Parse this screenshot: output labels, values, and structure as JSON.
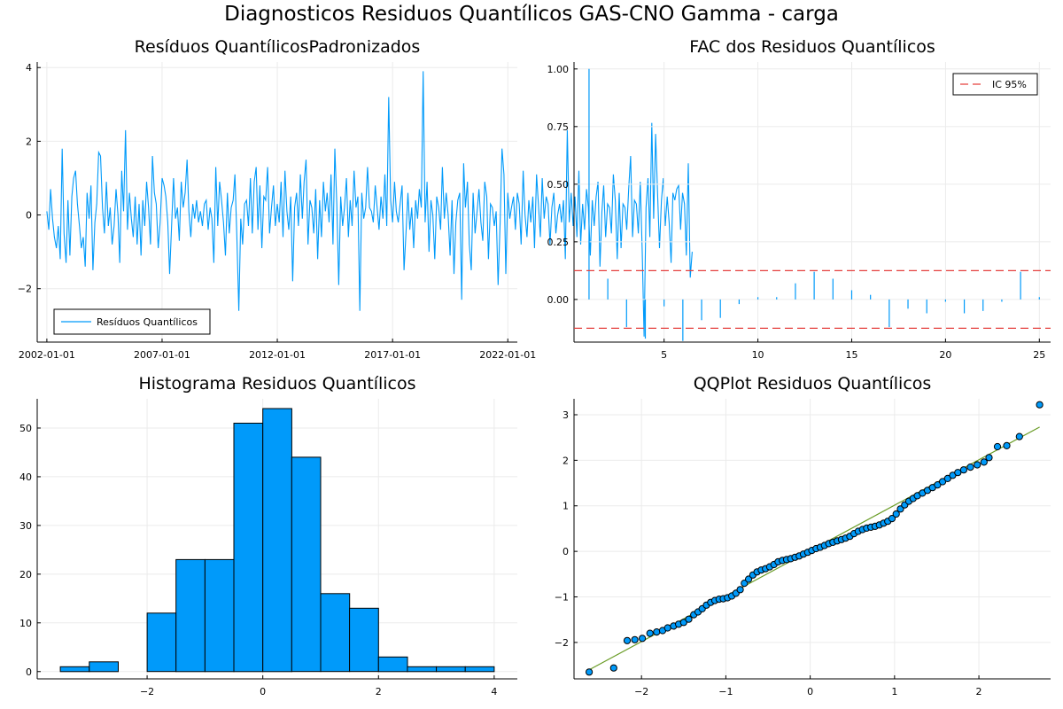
{
  "figure_title": "Diagnosticos Residuos  Quantílicos GAS-CNO Gamma - carga",
  "colors": {
    "series": "#009AFA",
    "ic": "#E5403E",
    "fit": "#6A9C26",
    "grid": "#EBEBEB",
    "axis": "#000000"
  },
  "chart_data": [
    {
      "type": "line",
      "title": "Resíduos  QuantílicosPadronizados",
      "legend": {
        "entries": [
          "Resíduos Quantílicos"
        ],
        "position": "bottom-left"
      },
      "x_ticks": [
        "2002-01-01",
        "2007-01-01",
        "2012-01-01",
        "2017-01-01",
        "2022-01-01"
      ],
      "x_range": [
        "2001-08-01",
        "2022-06-01"
      ],
      "y_ticks": [
        -2,
        0,
        2,
        4
      ],
      "ylim": [
        -3.45,
        4.15
      ],
      "grid": true,
      "series": [
        {
          "name": "Resíduos Quantílicos",
          "x_start": "2002-01-01",
          "frequency": "monthly",
          "values": [
            0.1,
            -0.4,
            0.7,
            -0.1,
            -0.6,
            -0.9,
            -0.3,
            -1.2,
            1.8,
            -0.5,
            -1.3,
            0.4,
            -1.1,
            0.5,
            1.0,
            1.2,
            0.3,
            -0.3,
            -0.9,
            -0.6,
            -1.4,
            0.6,
            -0.1,
            0.8,
            -1.5,
            -0.2,
            0.3,
            1.7,
            1.6,
            0.2,
            -0.5,
            0.9,
            -0.3,
            0.2,
            -0.8,
            -0.3,
            0.7,
            0.0,
            -1.3,
            1.2,
            0.1,
            2.3,
            -0.4,
            0.6,
            -0.1,
            -0.6,
            0.5,
            -0.8,
            0.3,
            -1.1,
            0.4,
            -0.3,
            0.9,
            0.2,
            -0.8,
            1.6,
            0.6,
            0.3,
            -0.9,
            -0.2,
            1.0,
            0.8,
            0.5,
            -0.2,
            -1.6,
            -0.3,
            1.0,
            -0.1,
            0.2,
            -0.7,
            0.9,
            0.2,
            0.6,
            1.5,
            0.1,
            -0.6,
            0.3,
            -0.1,
            0.4,
            -0.2,
            0.1,
            -0.3,
            0.3,
            0.4,
            -0.4,
            0.2,
            -0.1,
            -1.3,
            1.3,
            -0.3,
            0.9,
            0.4,
            -0.2,
            -1.1,
            0.6,
            -0.5,
            0.2,
            0.4,
            1.1,
            -0.6,
            -2.6,
            -0.1,
            -0.8,
            0.3,
            0.4,
            -0.3,
            1.0,
            -0.5,
            0.9,
            1.3,
            -0.4,
            0.8,
            -0.9,
            0.5,
            0.4,
            1.3,
            -0.5,
            0.2,
            0.8,
            -0.3,
            0.3,
            -0.2,
            0.9,
            -0.6,
            1.2,
            0.1,
            -0.4,
            0.5,
            -1.8,
            0.2,
            0.6,
            -0.3,
            1.1,
            -0.1,
            0.9,
            1.5,
            -0.8,
            0.4,
            0.2,
            -0.5,
            0.7,
            -1.2,
            0.4,
            -0.6,
            0.9,
            0.1,
            0.6,
            -0.2,
            1.1,
            -0.8,
            1.8,
            0.3,
            -1.9,
            0.5,
            -0.3,
            0.2,
            1.0,
            -0.6,
            0.4,
            -0.3,
            1.2,
            0.2,
            0.5,
            -2.6,
            0.6,
            -0.1,
            0.2,
            1.3,
            0.2,
            0.1,
            -0.2,
            0.8,
            0.2,
            -0.4,
            0.5,
            -0.1,
            1.1,
            -0.3,
            3.2,
            0.4,
            -0.2,
            0.9,
            0.1,
            -0.2,
            0.3,
            0.8,
            -1.5,
            -0.5,
            0.6,
            -0.4,
            0.2,
            -0.9,
            0.4,
            -0.1,
            0.7,
            0.2,
            3.9,
            -0.2,
            0.9,
            -1.0,
            0.4,
            0.0,
            -1.2,
            0.5,
            0.2,
            -0.4,
            1.3,
            -0.1,
            0.6,
            0.0,
            -1.1,
            0.4,
            -1.6,
            -0.2,
            0.4,
            0.6,
            -2.3,
            1.4,
            0.2,
            0.9,
            -0.8,
            -1.5,
            0.6,
            -0.5,
            0.1,
            0.7,
            -0.2,
            -0.7,
            0.9,
            0.5,
            -1.2,
            0.3,
            0.2,
            -0.3,
            0.1,
            -1.9,
            -0.2,
            1.8,
            1.1,
            -1.6,
            0.6,
            -0.1,
            0.2,
            0.5,
            -0.4,
            0.6,
            0.3,
            -0.8,
            1.2,
            0.0,
            -0.6,
            0.4,
            -0.2,
            0.5,
            -0.9,
            1.1,
            0.3,
            -0.6,
            1.0,
            -0.1,
            0.5,
            0.3,
            -0.8,
            0.2,
            0.6,
            -0.5,
            0.0,
            0.3,
            -0.2,
            0.4,
            -1.2,
            2.3,
            -0.2,
            0.6,
            -0.3,
            0.5,
            -0.6,
            1.2,
            -0.8,
            0.3,
            -0.4,
            0.7,
            0.2,
            -1.1,
            0.4,
            -0.3,
            0.5,
            0.9,
            -1.4,
            0.1,
            0.8,
            -0.6,
            0.3,
            0.2,
            -0.5,
            1.1,
            0.4,
            -1.2,
            0.6,
            -0.9,
            0.3,
            0.2,
            -0.4,
            0.7,
            1.6,
            -0.6,
            0.4,
            0.3,
            -0.5,
            0.9,
            -1.0,
            -3.3,
            0.2,
            1.0,
            -0.6,
            2.5,
            -0.1,
            2.2,
            0.6,
            -0.9,
            0.4,
            1.0,
            -0.3,
            0.5,
            -0.2,
            -1.3,
            0.6,
            0.4,
            0.7,
            0.8,
            -0.4,
            0.6,
            0.3,
            -1.1,
            1.4,
            -1.7,
            -1.0
          ]
        }
      ]
    },
    {
      "type": "bar",
      "title": "FAC dos Residuos Quantílicos",
      "legend": {
        "entries": [
          "IC 95%"
        ],
        "position": "top-right"
      },
      "x_ticks": [
        5,
        10,
        15,
        20,
        25
      ],
      "xlim": [
        0.2,
        25.6
      ],
      "y_ticks": [
        "0.00",
        "0.25",
        "0.50",
        "0.75",
        "1.00"
      ],
      "ylim": [
        -0.185,
        1.03
      ],
      "grid": true,
      "lags": [
        1,
        2,
        3,
        4,
        5,
        6,
        7,
        8,
        9,
        10,
        11,
        12,
        13,
        14,
        15,
        16,
        17,
        18,
        19,
        20,
        21,
        22,
        23,
        24,
        25
      ],
      "values": [
        1.0,
        0.09,
        -0.12,
        -0.17,
        -0.03,
        -0.18,
        -0.09,
        -0.08,
        -0.02,
        0.01,
        0.01,
        0.07,
        0.12,
        0.09,
        0.04,
        0.02,
        -0.12,
        -0.04,
        -0.06,
        -0.01,
        -0.06,
        -0.05,
        -0.01,
        0.12,
        0.01
      ],
      "ic_upper": 0.125,
      "ic_lower": -0.125
    },
    {
      "type": "histogram",
      "title": "Histograma Residuos Quantílicos",
      "x_ticks": [
        -2,
        0,
        2,
        4
      ],
      "xlim": [
        -3.9,
        4.4
      ],
      "y_ticks": [
        0,
        10,
        20,
        30,
        40,
        50
      ],
      "ylim": [
        -1.5,
        56
      ],
      "grid": true,
      "bin_edges": [
        -3.5,
        -3.0,
        -2.5,
        -2.0,
        -1.5,
        -1.0,
        -0.5,
        0.0,
        0.5,
        1.0,
        1.5,
        2.0,
        2.5,
        3.0,
        3.5,
        4.0
      ],
      "counts": [
        1,
        2,
        0,
        12,
        23,
        23,
        51,
        54,
        44,
        16,
        13,
        3,
        1,
        1,
        1
      ]
    },
    {
      "type": "scatter",
      "title": "QQPlot Residuos Quantílicos",
      "x_ticks": [
        -2,
        -1,
        0,
        1,
        2
      ],
      "xlim": [
        -2.8,
        2.85
      ],
      "y_ticks": [
        -2,
        -1,
        0,
        1,
        2,
        3
      ],
      "ylim": [
        -2.8,
        3.35
      ],
      "grid": true,
      "fit_line": {
        "x": [
          -2.62,
          2.72
        ],
        "y": [
          -2.6,
          2.73
        ]
      },
      "points": [
        [
          -2.62,
          -2.65
        ],
        [
          -2.33,
          -2.56
        ],
        [
          -2.17,
          -1.96
        ],
        [
          -2.08,
          -1.94
        ],
        [
          -1.99,
          -1.91
        ],
        [
          -1.9,
          -1.8
        ],
        [
          -1.82,
          -1.77
        ],
        [
          -1.75,
          -1.74
        ],
        [
          -1.69,
          -1.68
        ],
        [
          -1.62,
          -1.64
        ],
        [
          -1.56,
          -1.6
        ],
        [
          -1.5,
          -1.56
        ],
        [
          -1.44,
          -1.49
        ],
        [
          -1.38,
          -1.39
        ],
        [
          -1.33,
          -1.33
        ],
        [
          -1.28,
          -1.26
        ],
        [
          -1.23,
          -1.18
        ],
        [
          -1.18,
          -1.12
        ],
        [
          -1.13,
          -1.08
        ],
        [
          -1.08,
          -1.05
        ],
        [
          -1.03,
          -1.04
        ],
        [
          -0.98,
          -1.02
        ],
        [
          -0.93,
          -0.98
        ],
        [
          -0.88,
          -0.92
        ],
        [
          -0.83,
          -0.84
        ],
        [
          -0.78,
          -0.7
        ],
        [
          -0.73,
          -0.61
        ],
        [
          -0.68,
          -0.52
        ],
        [
          -0.63,
          -0.45
        ],
        [
          -0.58,
          -0.41
        ],
        [
          -0.53,
          -0.38
        ],
        [
          -0.48,
          -0.34
        ],
        [
          -0.43,
          -0.29
        ],
        [
          -0.38,
          -0.23
        ],
        [
          -0.33,
          -0.2
        ],
        [
          -0.28,
          -0.18
        ],
        [
          -0.23,
          -0.16
        ],
        [
          -0.18,
          -0.13
        ],
        [
          -0.13,
          -0.1
        ],
        [
          -0.08,
          -0.06
        ],
        [
          -0.03,
          -0.02
        ],
        [
          0.02,
          0.02
        ],
        [
          0.07,
          0.06
        ],
        [
          0.12,
          0.09
        ],
        [
          0.17,
          0.13
        ],
        [
          0.22,
          0.17
        ],
        [
          0.27,
          0.2
        ],
        [
          0.32,
          0.23
        ],
        [
          0.37,
          0.26
        ],
        [
          0.42,
          0.29
        ],
        [
          0.47,
          0.33
        ],
        [
          0.52,
          0.39
        ],
        [
          0.57,
          0.44
        ],
        [
          0.62,
          0.48
        ],
        [
          0.67,
          0.51
        ],
        [
          0.72,
          0.53
        ],
        [
          0.77,
          0.55
        ],
        [
          0.82,
          0.58
        ],
        [
          0.87,
          0.62
        ],
        [
          0.92,
          0.66
        ],
        [
          0.97,
          0.72
        ],
        [
          1.02,
          0.82
        ],
        [
          1.07,
          0.93
        ],
        [
          1.12,
          1.02
        ],
        [
          1.17,
          1.1
        ],
        [
          1.22,
          1.16
        ],
        [
          1.27,
          1.22
        ],
        [
          1.33,
          1.28
        ],
        [
          1.39,
          1.34
        ],
        [
          1.45,
          1.4
        ],
        [
          1.51,
          1.46
        ],
        [
          1.57,
          1.53
        ],
        [
          1.63,
          1.6
        ],
        [
          1.69,
          1.67
        ],
        [
          1.75,
          1.73
        ],
        [
          1.82,
          1.79
        ],
        [
          1.9,
          1.85
        ],
        [
          1.98,
          1.9
        ],
        [
          2.06,
          1.96
        ],
        [
          2.12,
          2.06
        ],
        [
          2.22,
          2.3
        ],
        [
          2.33,
          2.32
        ],
        [
          2.48,
          2.52
        ],
        [
          2.72,
          3.22
        ]
      ]
    }
  ]
}
